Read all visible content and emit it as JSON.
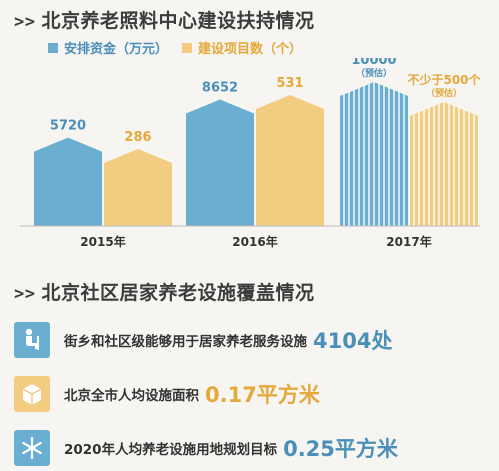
{
  "section1": {
    "title_arrow": ">>",
    "title": "北京养老照料中心建设扶持情况"
  },
  "legend": {
    "items": [
      {
        "label": "安排资金（万元）",
        "color": "#6aaed1"
      },
      {
        "label": "建设项目数（个）",
        "color": "#f2cc80"
      }
    ]
  },
  "chart_data": {
    "type": "bar",
    "categories": [
      "2015年",
      "2016年",
      "2017年"
    ],
    "series": [
      {
        "name": "安排资金（万元）",
        "values": [
          5720,
          8652,
          10000
        ],
        "labels": [
          "5720",
          "8652",
          "10000"
        ],
        "notes": [
          "",
          "",
          "（预估）"
        ],
        "color": "#6aaed1",
        "label_color": "#4a8fb8"
      },
      {
        "name": "建设项目数（个）",
        "values": [
          286,
          531,
          500
        ],
        "labels": [
          "286",
          "531",
          "不少于500个"
        ],
        "notes": [
          "",
          "",
          "（预估）"
        ],
        "color": "#f2cc80",
        "label_color": "#e3a93a"
      }
    ],
    "title": "北京养老照料中心建设扶持情况",
    "xlabel": "",
    "ylabel": ""
  },
  "section2": {
    "title_arrow": ">>",
    "title": "北京社区居家养老设施覆盖情况",
    "items": [
      {
        "icon": "elderly-person-icon",
        "text": "街乡和社区级能够用于居家养老服务设施",
        "value": "4104处",
        "icon_bg": "#6aaed1",
        "value_color": "#4a8fb8"
      },
      {
        "icon": "box-icon",
        "text": "北京全市人均设施面积",
        "value": "0.17平方米",
        "icon_bg": "#f2cc80",
        "value_color": "#e3a93a"
      },
      {
        "icon": "snowflake-icon",
        "text": "2020年人均养老设施用地规划目标",
        "value": "0.25平方米",
        "icon_bg": "#6aaed1",
        "value_color": "#4a8fb8"
      }
    ]
  }
}
